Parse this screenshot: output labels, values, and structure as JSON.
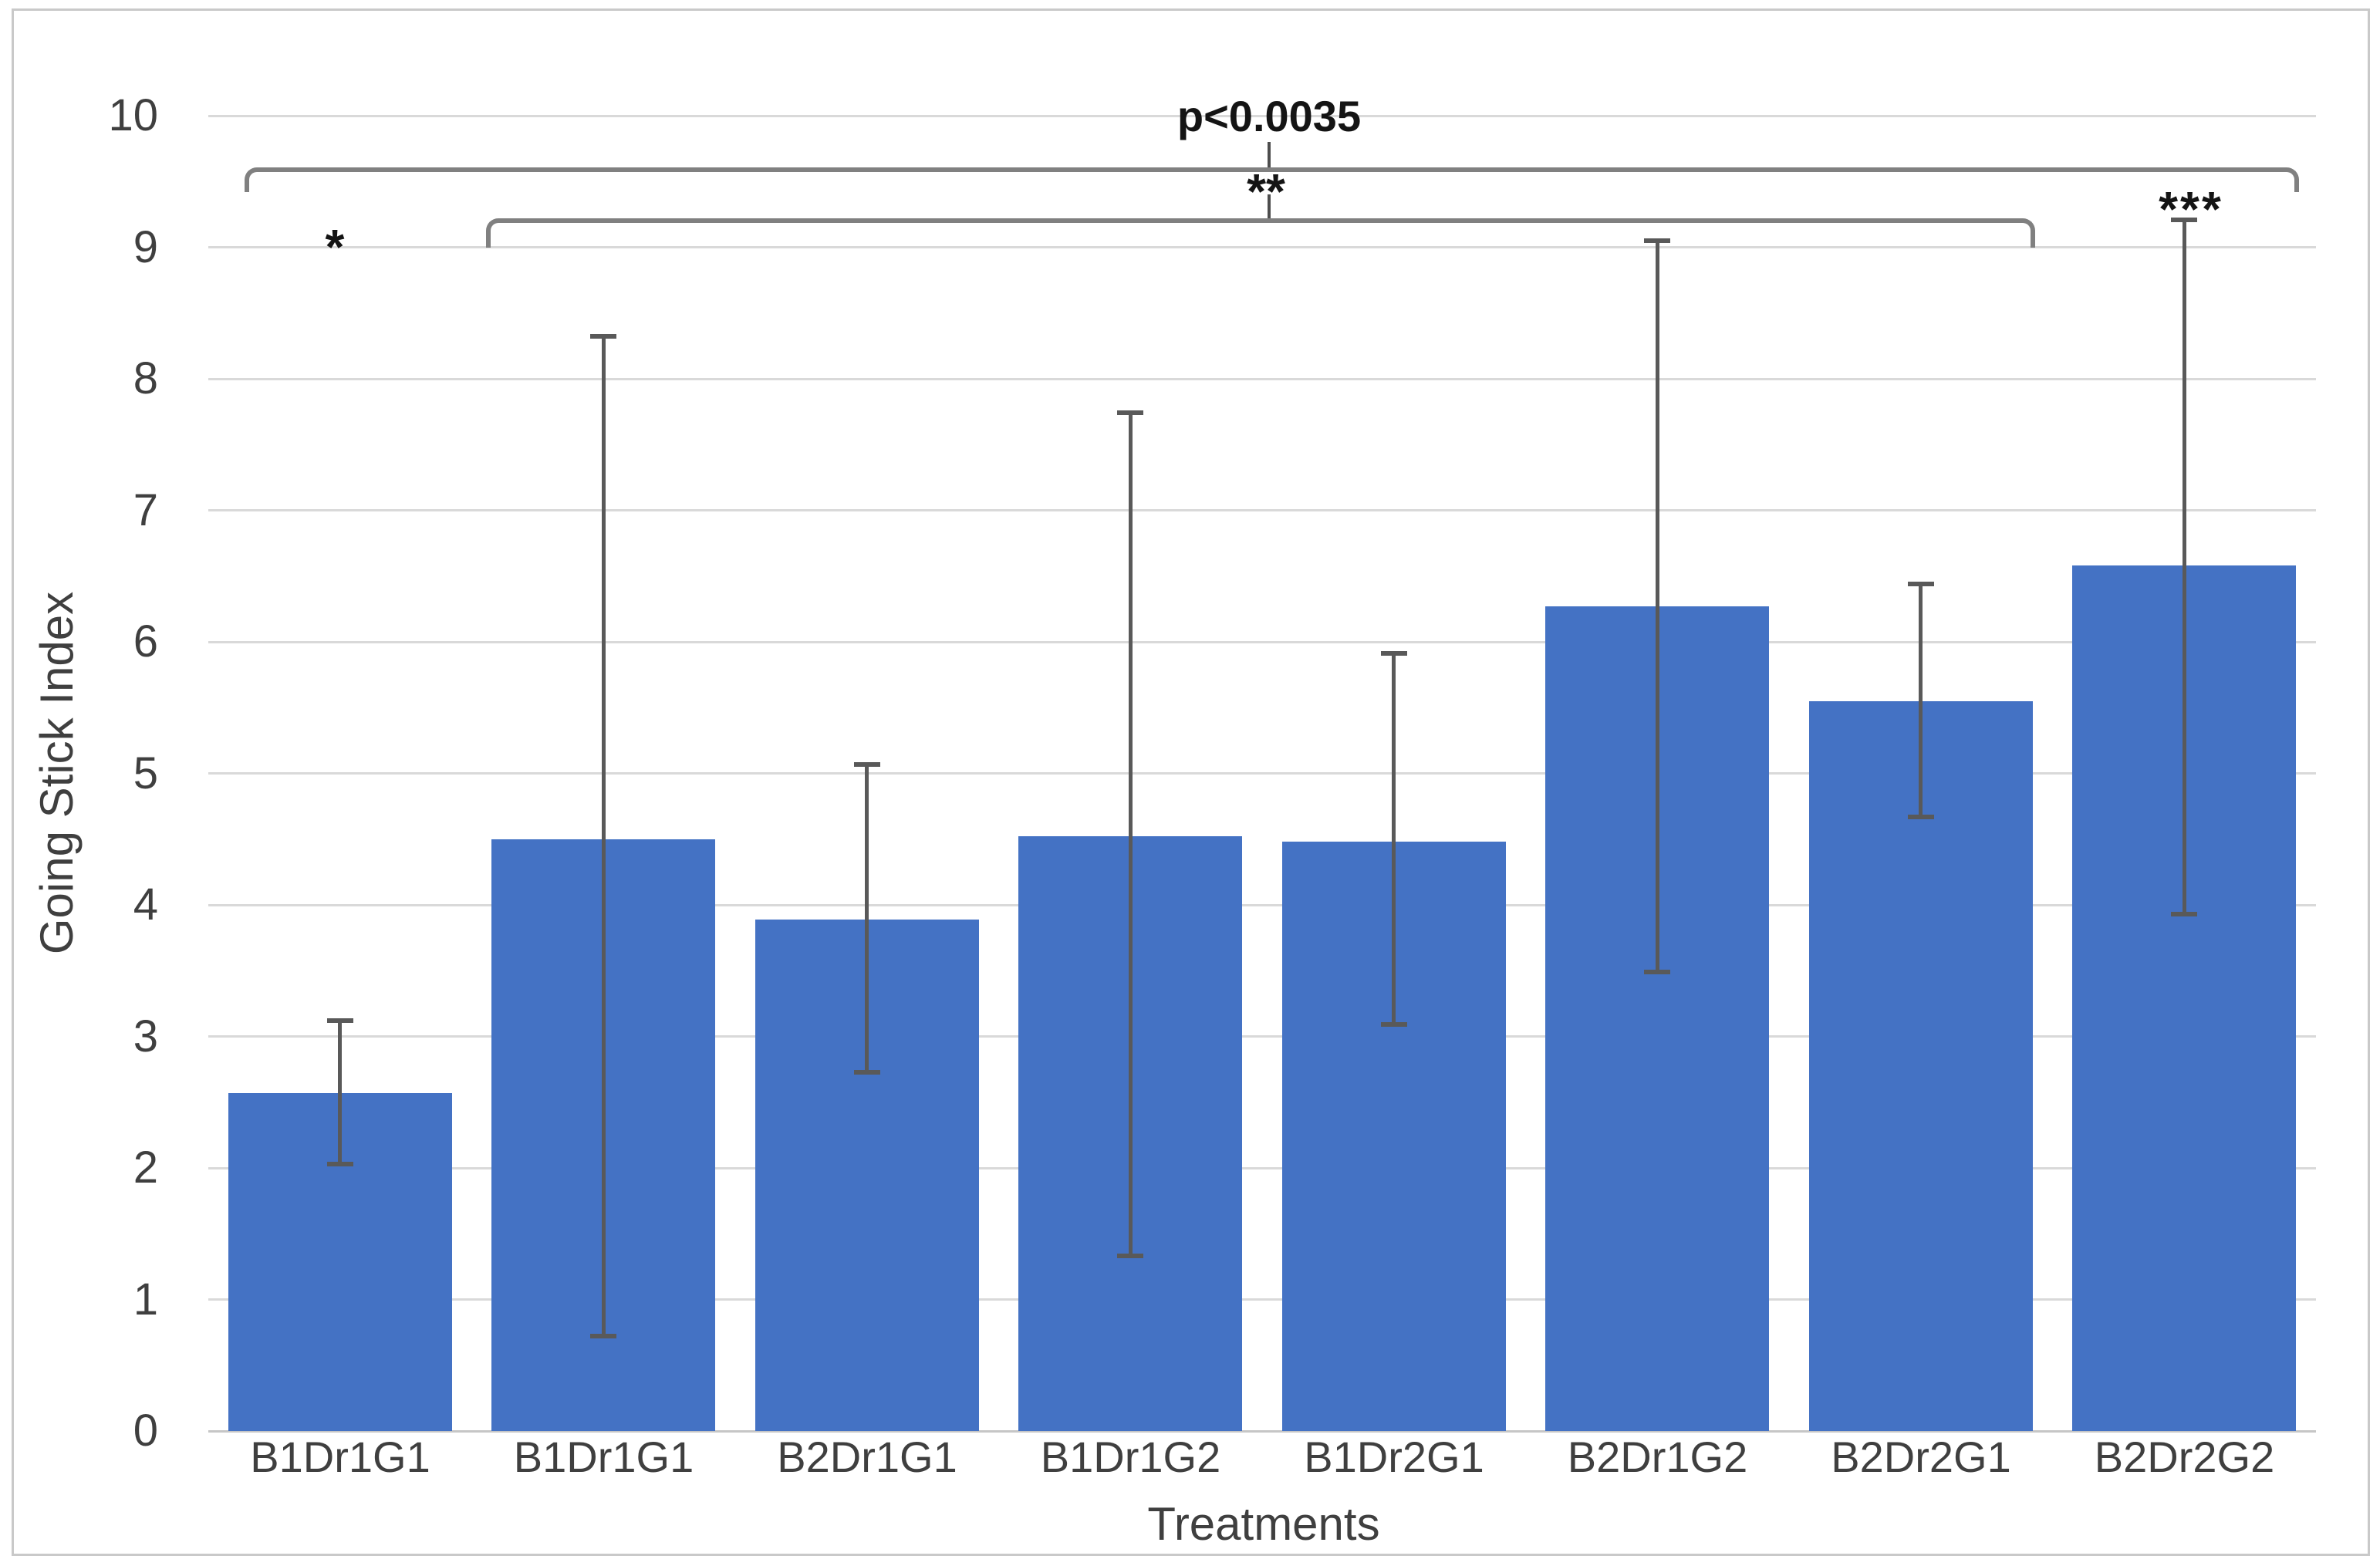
{
  "chart_data": {
    "type": "bar",
    "title": "",
    "xlabel": "Treatments",
    "ylabel": "Going Stick Index",
    "ylim": [
      0,
      10
    ],
    "ytick_labels": [
      "0",
      "1",
      "2",
      "3",
      "4",
      "5",
      "6",
      "7",
      "8",
      "9",
      "10"
    ],
    "grid": "horizontal",
    "legend": "none",
    "categories": [
      "B1Dr1G1",
      "B1Dr1G1",
      "B2Dr1G1",
      "B1Dr1G2",
      "B1Dr2G1",
      "B2Dr1G2",
      "B2Dr2G1",
      "B2Dr2G2"
    ],
    "series": [
      {
        "name": "Going Stick Index",
        "values": [
          2.57,
          4.5,
          3.89,
          4.52,
          4.48,
          6.27,
          5.55,
          6.58
        ],
        "error_low": [
          2.03,
          0.72,
          2.73,
          1.33,
          3.09,
          3.49,
          4.67,
          3.93
        ],
        "error_high": [
          3.12,
          8.32,
          5.07,
          7.74,
          5.91,
          9.05,
          6.44,
          9.21
        ]
      }
    ],
    "significance": {
      "p_text": "p<0.0035",
      "brackets": [
        {
          "label": "p<0.0035",
          "from_category_index": 0,
          "to_category_index": 7
        },
        {
          "label": "**",
          "from_category_index": 1,
          "to_category_index": 6
        }
      ],
      "bar_marks": [
        {
          "category_index": 0,
          "mark": "*"
        },
        {
          "category_index": 7,
          "mark": "***"
        }
      ]
    },
    "colors": {
      "bar": "#4472C4",
      "gridline": "#D9D9D9",
      "axis_baseline": "#C6C6C6",
      "error_bar": "#595959",
      "bracket": "#808080",
      "connector": "#4D4D4D",
      "axis_text": "#3F3F3F",
      "annotation_text": "#141414",
      "canvas_border": "#C9C9C9"
    }
  }
}
